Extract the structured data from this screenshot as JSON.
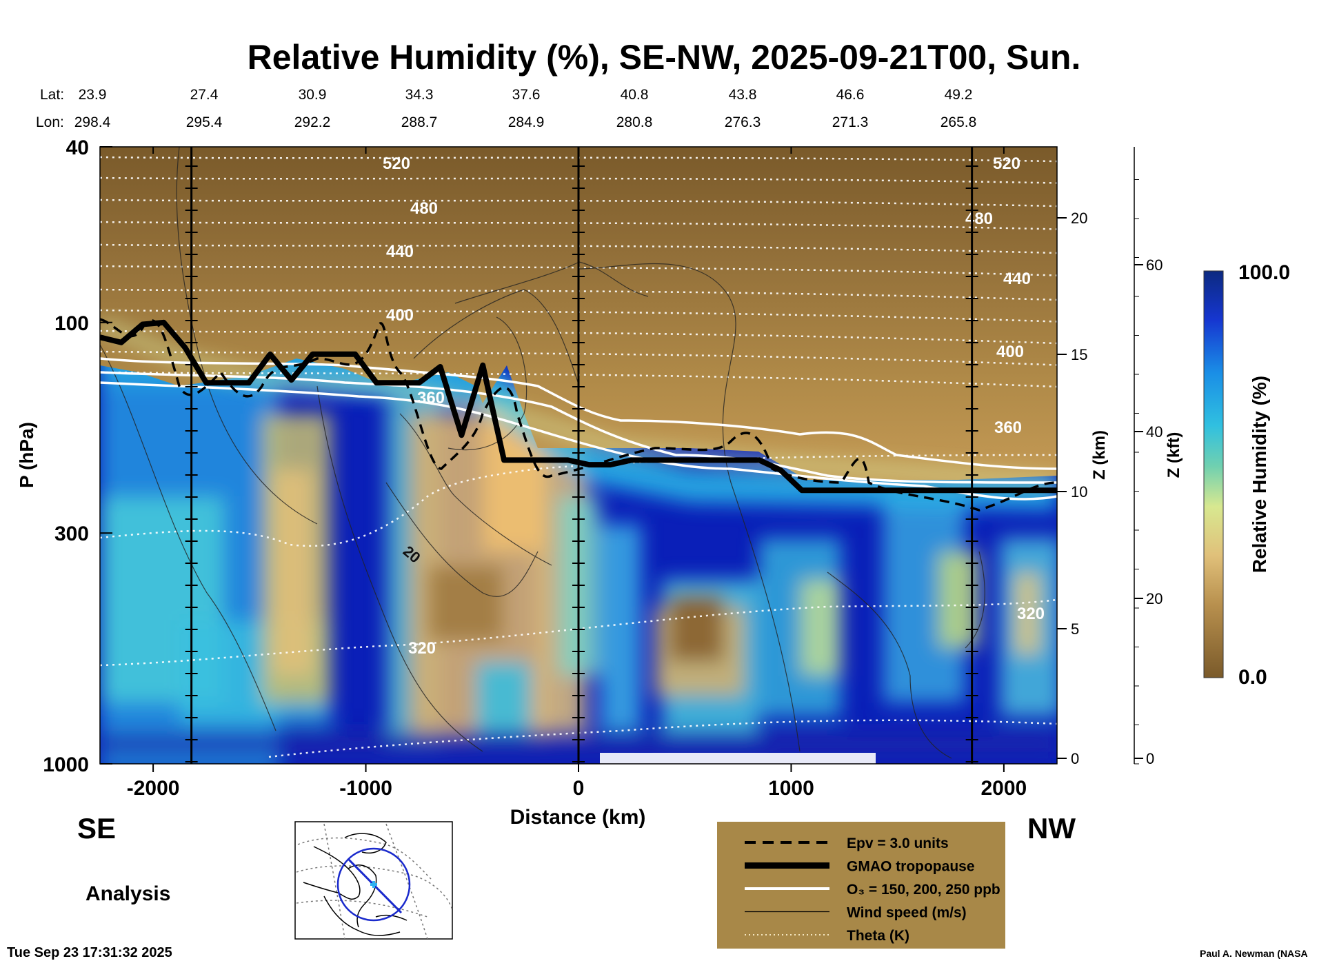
{
  "chart_data": {
    "type": "heatmap",
    "title": "Relative Humidity (%), SE-NW, 2025-09-21T00, Sun.",
    "xlabel": "Distance (km)",
    "ylabel": "P (hPa)",
    "right_axis_km_label": "Z (km)",
    "right_axis_kft_label": "Z (kft)",
    "colorbar_label": "Relative Humidity (%)",
    "colorbar_max_label": "100.0",
    "colorbar_min_label": "0.0",
    "xlim": [
      -2250,
      2250
    ],
    "x_ticks": [
      "-2000",
      "-1000",
      "0",
      "1000",
      "2000"
    ],
    "x_tick_values": [
      -2000,
      -1000,
      0,
      1000,
      2000
    ],
    "y_ticks": [
      "40",
      "100",
      "300",
      "1000"
    ],
    "y_tick_values": [
      40,
      100,
      300,
      1000
    ],
    "ylim_hpa": [
      1000,
      40
    ],
    "z_km_ticks": [
      "0",
      "5",
      "10",
      "15",
      "20"
    ],
    "z_kft_ticks": [
      "0",
      "20",
      "40",
      "60"
    ],
    "lat_label": "Lat:",
    "lon_label": "Lon:",
    "lat_values": [
      "23.9",
      "27.4",
      "30.9",
      "34.3",
      "37.6",
      "40.8",
      "43.8",
      "46.6",
      "49.2"
    ],
    "lon_values": [
      "298.4",
      "295.4",
      "292.2",
      "288.7",
      "284.9",
      "280.8",
      "276.3",
      "271.3",
      "265.8"
    ],
    "theta_labels": [
      "520",
      "480",
      "440",
      "400",
      "360",
      "320",
      "320",
      "520",
      "480",
      "440",
      "400",
      "360"
    ],
    "wind_label": "20",
    "tropopause_hpa_x": [
      -2250,
      -2150,
      -2050,
      -1950,
      -1850,
      -1750,
      -1650,
      -1550,
      -1450,
      -1350,
      -1250,
      -1150,
      -1050,
      -950,
      -850,
      -750,
      -650,
      -550,
      -450,
      -350,
      -250,
      -150,
      -50,
      50,
      150,
      250,
      350,
      450,
      550,
      650,
      750,
      850,
      950,
      1050,
      1150,
      1250,
      1350,
      1450,
      1550,
      1650,
      1750,
      1850,
      1950,
      2050,
      2150,
      2250
    ],
    "tropopause_hpa": [
      108,
      111,
      101,
      100,
      114,
      137,
      137,
      137,
      118,
      135,
      118,
      118,
      118,
      137,
      137,
      137,
      126,
      180,
      125,
      205,
      205,
      205,
      205,
      210,
      210,
      205,
      205,
      205,
      205,
      205,
      205,
      205,
      216,
      240,
      240,
      240,
      240,
      240,
      240,
      240,
      240,
      240,
      240,
      240,
      240,
      240
    ],
    "left_label": "SE",
    "right_label": "NW",
    "mode_label": "Analysis",
    "timestamp": "Tue Sep 23 17:31:32 2025",
    "credit": "Paul A. Newman (NASA",
    "legend": [
      {
        "style": "dashed",
        "label": "Epv = 3.0 units"
      },
      {
        "style": "thick",
        "label": "GMAO tropopause"
      },
      {
        "style": "white",
        "label": "O₃ = 150, 200, 250 ppb"
      },
      {
        "style": "thin",
        "label": "Wind speed (m/s)"
      },
      {
        "style": "dotted",
        "label": "Theta (K)"
      }
    ],
    "colors": {
      "rh_dry": "#7a5a2a",
      "rh_tan": "#d8b070",
      "rh_cyan": "#30c0e0",
      "rh_blue": "#0a1fb8",
      "legend_bg": "#a88848"
    }
  }
}
